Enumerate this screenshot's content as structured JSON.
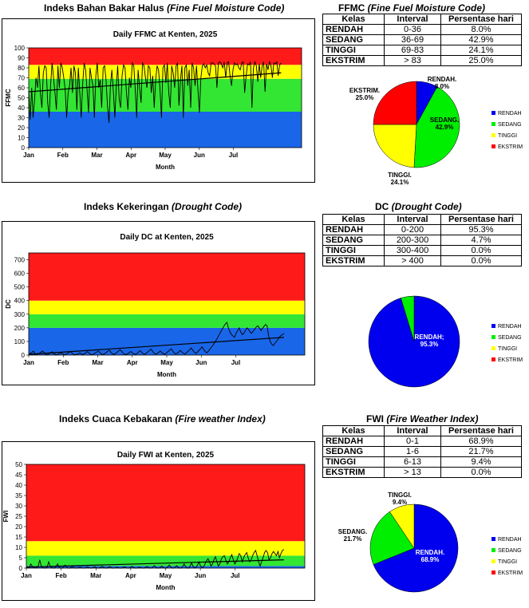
{
  "sections": [
    {
      "id": "ffmc",
      "heading_plain": "Indeks Bahan Bakar Halus ",
      "heading_italic": "(Fine Fuel Moisture Code)",
      "table_title_plain": "FFMC ",
      "table_title_italic": "(Fine Fuel Moisture Code)",
      "table": {
        "headers": [
          "Kelas",
          "Interval",
          "Persentase hari"
        ],
        "rows": [
          [
            "RENDAH",
            "0-36",
            "8.0%"
          ],
          [
            "SEDANG",
            "36-69",
            "42.9%"
          ],
          [
            "TINGGI",
            "69-83",
            "24.1%"
          ],
          [
            "EKSTRIM",
            "> 83",
            "25.0%"
          ]
        ]
      },
      "legend": [
        "RENDAH",
        "SEDANG",
        "TINGGI",
        "EKSTRIM"
      ],
      "pie_labels": [
        {
          "name": "RENDAH.",
          "value": "8.0%"
        },
        {
          "name": "SEDANG.",
          "value": "42.9%"
        },
        {
          "name": "TINGGI.",
          "value": "24.1%"
        },
        {
          "name": "EKSTRIM.",
          "value": "25.0%"
        }
      ]
    },
    {
      "id": "dc",
      "heading_plain": "Indeks Kekeringan ",
      "heading_italic": "(Drought Code)",
      "table_title_plain": "DC ",
      "table_title_italic": "(Drought Code)",
      "table": {
        "headers": [
          "Kelas",
          "Interval",
          "Persentase hari"
        ],
        "rows": [
          [
            "RENDAH",
            "0-200",
            "95.3%"
          ],
          [
            "SEDANG",
            "200-300",
            "4.7%"
          ],
          [
            "TINGGI",
            "300-400",
            "0.0%"
          ],
          [
            "EKSTRIM",
            "> 400",
            "0.0%"
          ]
        ]
      },
      "legend": [
        "RENDAH",
        "SEDANG",
        "TINGGI",
        "EKSTRIM"
      ],
      "pie_labels": [
        {
          "name": "RENDAH;",
          "value": "95.3%"
        }
      ]
    },
    {
      "id": "fwi",
      "heading_plain": "Indeks Cuaca Kebakaran ",
      "heading_italic": "(Fire weather Index)",
      "table_title_plain": "FWI ",
      "table_title_italic": "(Fire Weather Index)",
      "table": {
        "headers": [
          "Kelas",
          "Interval",
          "Persentase hari"
        ],
        "rows": [
          [
            "RENDAH",
            "0-1",
            "68.9%"
          ],
          [
            "SEDANG",
            "1-6",
            "21.7%"
          ],
          [
            "TINGGI",
            "6-13",
            "9.4%"
          ],
          [
            "EKSTRIM",
            "> 13",
            "0.0%"
          ]
        ]
      },
      "legend": [
        "RENDAH",
        "SEDANG",
        "TINGGI",
        "EKSTRIM"
      ],
      "pie_labels": [
        {
          "name": "RENDAH.",
          "value": "68.9%"
        },
        {
          "name": "SEDANG.",
          "value": "21.7%"
        },
        {
          "name": "TINGGI.",
          "value": "9.4%"
        }
      ]
    }
  ],
  "colors": {
    "rendah": "#1a66e8",
    "sedang": "#33e633",
    "tinggi": "#ffff00",
    "ekstrim": "#ff1a1a",
    "pie_rendah": "#0000ee",
    "pie_sedang": "#00ee00",
    "pie_tinggi": "#ffff00",
    "pie_ekstrim": "#ff0000"
  },
  "chart_data": [
    {
      "type": "line",
      "title": "Daily FFMC at Kenten, 2025",
      "xlabel": "Month",
      "ylabel": "FFMC",
      "x_ticks": [
        "Jan",
        "Feb",
        "Mar",
        "Apr",
        "May",
        "Jun",
        "Jul"
      ],
      "x_range_days": [
        0,
        240
      ],
      "ylim": [
        0,
        100
      ],
      "y_ticks": [
        0,
        10,
        20,
        30,
        40,
        50,
        60,
        70,
        80,
        90,
        100
      ],
      "bands": [
        {
          "name": "RENDAH",
          "from": 0,
          "to": 36
        },
        {
          "name": "SEDANG",
          "from": 36,
          "to": 69
        },
        {
          "name": "TINGGI",
          "from": 69,
          "to": 83
        },
        {
          "name": "EKSTRIM",
          "from": 83,
          "to": 100
        }
      ],
      "series": [
        {
          "values": [
            57,
            28,
            60,
            30,
            48,
            70,
            60,
            82,
            55,
            40,
            75,
            82,
            80,
            45,
            30,
            62,
            85,
            70,
            55,
            38,
            82,
            60,
            85,
            80,
            70,
            58,
            30,
            55,
            62,
            80,
            55,
            82,
            75,
            38,
            80,
            55,
            30,
            65,
            85,
            78,
            58,
            35,
            80,
            70,
            62,
            30,
            72,
            85,
            60,
            68,
            40,
            80,
            82,
            68,
            42,
            25,
            62,
            78,
            56,
            30,
            60,
            82,
            48,
            40,
            72,
            83,
            80,
            55,
            38,
            70,
            60,
            85,
            82,
            58,
            30,
            78,
            60,
            45,
            85,
            82,
            70,
            60,
            82,
            80,
            55,
            72,
            40,
            68,
            82,
            78,
            58,
            30,
            80,
            83,
            65,
            85,
            55,
            40,
            82,
            75,
            60,
            82,
            85,
            42,
            68,
            82,
            30,
            80,
            83,
            62,
            78,
            40,
            85,
            80,
            62,
            82,
            58,
            35,
            70,
            82,
            84,
            80,
            83,
            75,
            72,
            85,
            85,
            84,
            82,
            60,
            85,
            86,
            84,
            80,
            86,
            70,
            85,
            86,
            72,
            62,
            78,
            85,
            83,
            84,
            80,
            78,
            85,
            86,
            55,
            72,
            84,
            83,
            86,
            40,
            80,
            86,
            82,
            66,
            84,
            70,
            82,
            86,
            56,
            84,
            78,
            86,
            83,
            70,
            85,
            84,
            86,
            72,
            83,
            85
          ]
        },
        {
          "name": "trend",
          "values": [
            56,
            75
          ]
        }
      ]
    },
    {
      "type": "line",
      "title": "Daily DC at Kenten, 2025",
      "xlabel": "Month",
      "ylabel": "DC",
      "x_ticks": [
        "Jan",
        "Feb",
        "Mar",
        "Apr",
        "May",
        "Jun",
        "Jul"
      ],
      "x_range_days": [
        0,
        240
      ],
      "ylim": [
        0,
        750
      ],
      "y_ticks": [
        0,
        100,
        200,
        300,
        400,
        500,
        600,
        700
      ],
      "bands": [
        {
          "name": "RENDAH",
          "from": 0,
          "to": 200
        },
        {
          "name": "SEDANG",
          "from": 200,
          "to": 300
        },
        {
          "name": "TINGGI",
          "from": 300,
          "to": 400
        },
        {
          "name": "EKSTRIM",
          "from": 400,
          "to": 750
        }
      ],
      "series": [
        {
          "values": [
            5,
            12,
            20,
            28,
            10,
            4,
            8,
            14,
            22,
            30,
            16,
            6,
            3,
            8,
            15,
            24,
            12,
            5,
            2,
            6,
            11,
            17,
            8,
            3,
            6,
            12,
            19,
            26,
            14,
            6,
            2,
            5,
            9,
            15,
            8,
            4,
            10,
            18,
            26,
            14,
            6,
            3,
            8,
            15,
            22,
            30,
            18,
            8,
            4,
            10,
            18,
            28,
            36,
            22,
            10,
            5,
            12,
            20,
            30,
            40,
            28,
            14,
            6,
            4,
            10,
            18,
            26,
            16,
            8,
            5,
            12,
            22,
            32,
            20,
            10,
            6,
            14,
            24,
            34,
            44,
            28,
            14,
            8,
            12,
            20,
            30,
            18,
            10,
            6,
            16,
            26,
            36,
            46,
            30,
            16,
            8,
            14,
            24,
            34,
            22,
            12,
            8,
            18,
            28,
            40,
            52,
            36,
            20,
            12,
            22,
            34,
            46,
            60,
            42,
            26,
            16,
            28,
            42,
            56,
            72,
            90,
            108,
            126,
            148,
            170,
            190,
            210,
            228,
            240,
            200,
            170,
            150,
            140,
            130,
            160,
            180,
            200,
            170,
            150,
            160,
            180,
            200,
            190,
            170,
            160,
            175,
            190,
            205,
            215,
            200,
            180,
            195,
            210,
            225,
            215,
            140,
            100,
            80,
            70,
            85,
            100,
            115,
            130,
            145,
            150,
            160
          ]
        },
        {
          "name": "trend",
          "values": [
            5,
            130
          ]
        }
      ]
    },
    {
      "type": "line",
      "title": "Daily FWI at Kenten, 2025",
      "xlabel": "Month",
      "ylabel": "FWI",
      "x_ticks": [
        "Jan",
        "Feb",
        "Mar",
        "Apr",
        "May",
        "Jun",
        "Jul"
      ],
      "x_range_days": [
        0,
        240
      ],
      "ylim": [
        0,
        50
      ],
      "y_ticks": [
        0,
        5,
        10,
        15,
        20,
        25,
        30,
        35,
        40,
        45,
        50
      ],
      "bands": [
        {
          "name": "RENDAH",
          "from": 0,
          "to": 1
        },
        {
          "name": "SEDANG",
          "from": 1,
          "to": 6
        },
        {
          "name": "TINGGI",
          "from": 6,
          "to": 13
        },
        {
          "name": "EKSTRIM",
          "from": 13,
          "to": 50
        }
      ],
      "series": [
        {
          "values": [
            0,
            0.2,
            0.5,
            2,
            0.8,
            0.3,
            0,
            0.2,
            1,
            4,
            1,
            0.2,
            0,
            0,
            0.5,
            3,
            1,
            0.3,
            0,
            0,
            0.8,
            2,
            0.5,
            0,
            0,
            0.4,
            1.5,
            0.6,
            0,
            0,
            0.3,
            0.8,
            0.2,
            0,
            0,
            0.2,
            0.5,
            0.2,
            0,
            0,
            0.2,
            0.6,
            0.2,
            0,
            0,
            0.3,
            0.7,
            0.2,
            0,
            0,
            0.4,
            0.9,
            0.3,
            0,
            0,
            0.3,
            0.8,
            0.2,
            0,
            0,
            0.2,
            0.4,
            0.1,
            0,
            0,
            0.3,
            0.6,
            0.2,
            0,
            0,
            0.4,
            0.8,
            0.3,
            0,
            0,
            0.2,
            0.5,
            0.2,
            0,
            0,
            0.3,
            0.8,
            0.3,
            0,
            0,
            0.5,
            1.2,
            0.4,
            0,
            0,
            0.4,
            1,
            0.3,
            0,
            0,
            0.6,
            1.5,
            0.5,
            0,
            0,
            0.5,
            1.2,
            0.4,
            0,
            0,
            0.8,
            2,
            0.6,
            0,
            0,
            1,
            2.5,
            0.8,
            0,
            0.4,
            1.5,
            3,
            1,
            0.3,
            0.6,
            2,
            3.5,
            4.5,
            3,
            1,
            2,
            4,
            5.5,
            3,
            1,
            2,
            4.5,
            5.5,
            6,
            4,
            2,
            3,
            5,
            6.5,
            4,
            2,
            3,
            5,
            7,
            6,
            3,
            5,
            6.5,
            7.5,
            5,
            3,
            4,
            6,
            7.5,
            8.5,
            6,
            3,
            1,
            3,
            5,
            7.5,
            8.5,
            7.5,
            4,
            5,
            7,
            8,
            7,
            6,
            8,
            5,
            7,
            8.5,
            9
          ]
        },
        {
          "name": "trend",
          "values": [
            0.5,
            4
          ]
        }
      ]
    },
    {
      "type": "pie",
      "labels": [
        "RENDAH",
        "SEDANG",
        "TINGGI",
        "EKSTRIM"
      ],
      "values": [
        8.0,
        42.9,
        24.1,
        25.0
      ]
    },
    {
      "type": "pie",
      "labels": [
        "RENDAH",
        "SEDANG",
        "TINGGI",
        "EKSTRIM"
      ],
      "values": [
        95.3,
        4.7,
        0.0,
        0.0
      ]
    },
    {
      "type": "pie",
      "labels": [
        "RENDAH",
        "SEDANG",
        "TINGGI",
        "EKSTRIM"
      ],
      "values": [
        68.9,
        21.7,
        9.4,
        0.0
      ]
    }
  ]
}
